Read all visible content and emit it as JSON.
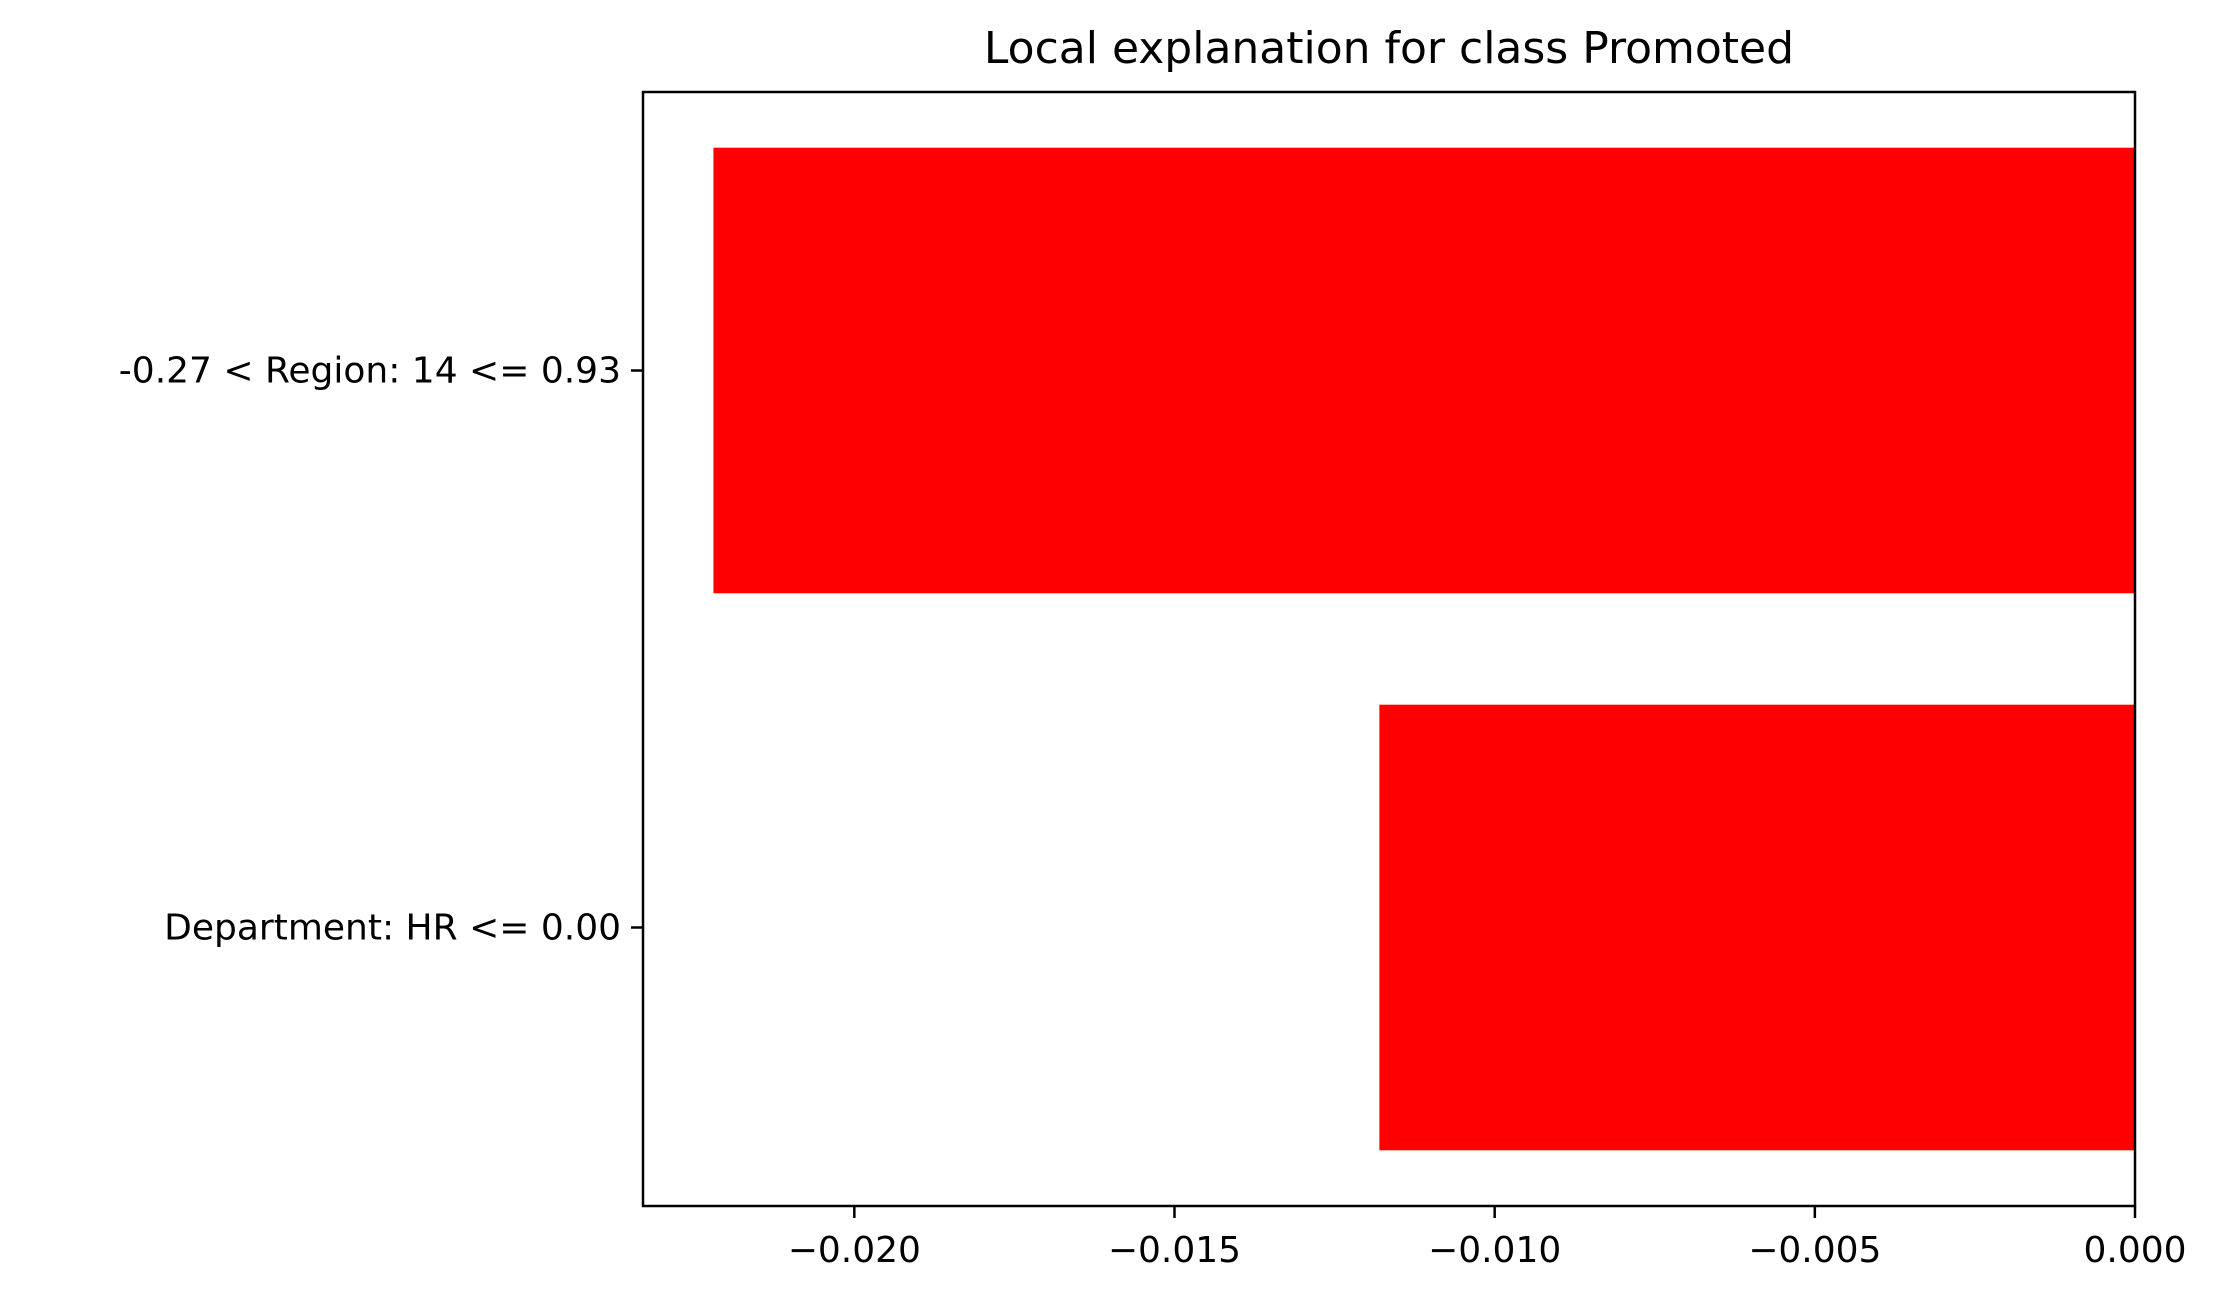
{
  "chart_data": {
    "type": "bar",
    "orientation": "horizontal",
    "title": "Local explanation for class Promoted",
    "xlabel": "",
    "ylabel": "",
    "categories": [
      "Department: HR <= 0.00",
      "-0.27 < Region: 14 <= 0.93"
    ],
    "values": [
      -0.0118,
      -0.0222
    ],
    "xlim": [
      -0.0233,
      0.0
    ],
    "xticks": [
      -0.02,
      -0.015,
      -0.01,
      -0.005,
      0.0
    ],
    "xtick_labels": [
      "−0.020",
      "−0.015",
      "−0.010",
      "−0.005",
      "0.000"
    ],
    "bar_color": "#ff0000",
    "grid": false,
    "legend": "none"
  }
}
